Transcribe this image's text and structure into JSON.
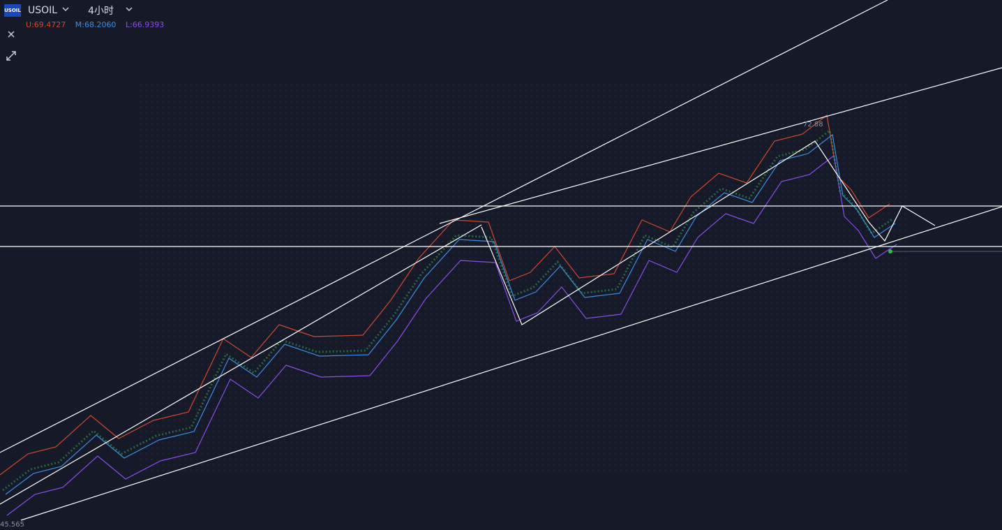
{
  "header": {
    "logo": "USOIL",
    "symbol": "USOIL",
    "timeframe": "4小时"
  },
  "indicator": {
    "upper": "U:69.4727",
    "middle": "M:68.2060",
    "lower": "L:66.9393"
  },
  "annotations": {
    "high": "72.88",
    "low": "45.565"
  }
}
